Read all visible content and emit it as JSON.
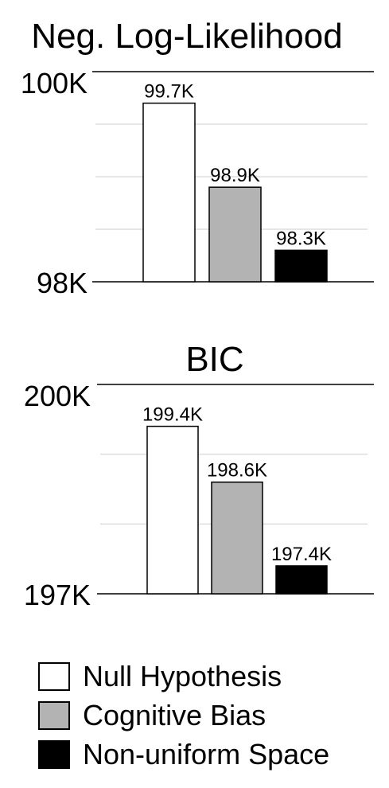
{
  "chart_data": [
    {
      "type": "bar",
      "title": "Neg. Log-Likelihood",
      "series_names": [
        "Null Hypothesis",
        "Cognitive Bias",
        "Non-uniform Space"
      ],
      "values": [
        99.7,
        98.9,
        98.3
      ],
      "value_labels": [
        "99.7K",
        "98.9K",
        "98.3K"
      ],
      "ylim": [
        98,
        100
      ],
      "ytick_labels": [
        "98K",
        "100K"
      ],
      "grid": true,
      "grid_values": [
        98.5,
        99,
        99.5
      ]
    },
    {
      "type": "bar",
      "title": "BIC",
      "series_names": [
        "Null Hypothesis",
        "Cognitive Bias",
        "Non-uniform Space"
      ],
      "values": [
        199.4,
        198.6,
        197.4
      ],
      "value_labels": [
        "199.4K",
        "198.6K",
        "197.4K"
      ],
      "ylim": [
        197,
        200
      ],
      "ytick_labels": [
        "197K",
        "200K"
      ],
      "grid": true,
      "grid_values": [
        198,
        199
      ]
    }
  ],
  "legend": {
    "placement": "bottom",
    "items": [
      {
        "label": "Null Hypothesis",
        "color": "#ffffff"
      },
      {
        "label": "Cognitive Bias",
        "color": "#b3b3b3"
      },
      {
        "label": "Non-uniform Space",
        "color": "#000000"
      }
    ]
  },
  "colors": {
    "bar_fills": [
      "#ffffff",
      "#b3b3b3",
      "#000000"
    ],
    "grid": "#dddddd",
    "axis": "#000000"
  }
}
